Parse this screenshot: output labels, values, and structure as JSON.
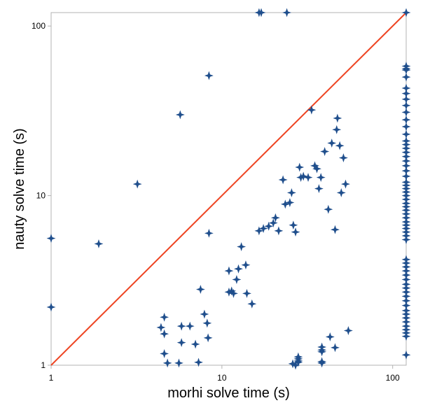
{
  "chart_data": {
    "type": "scatter",
    "title": "",
    "xlabel": "morhi solve time (s)",
    "ylabel": "nauty solve time (s)",
    "x_scale": "log",
    "y_scale": "log",
    "xlim": [
      1,
      120
    ],
    "ylim": [
      1,
      120
    ],
    "x_ticks": [
      1,
      10,
      100
    ],
    "y_ticks": [
      1,
      10,
      100
    ],
    "x_tick_labels": [
      "1",
      "10",
      "100"
    ],
    "y_tick_labels": [
      "1",
      "10",
      "100"
    ],
    "grid": false,
    "colors": {
      "points": "#1f4e8c",
      "diagonal": "#ee4422",
      "frame": "#b3b3b3"
    },
    "reference_line": {
      "type": "y=x"
    },
    "series": [
      {
        "points": [
          [
            1.0,
            5.6
          ],
          [
            1.0,
            2.2
          ],
          [
            1.9,
            5.2
          ],
          [
            3.2,
            11.7
          ],
          [
            5.7,
            30.0
          ],
          [
            8.4,
            51.0
          ],
          [
            8.4,
            6.0
          ],
          [
            16.5,
            120
          ],
          [
            17.0,
            120
          ],
          [
            24.0,
            120
          ],
          [
            120,
            120
          ],
          [
            4.4,
            1.67
          ],
          [
            4.6,
            1.92
          ],
          [
            4.6,
            1.53
          ],
          [
            4.6,
            1.17
          ],
          [
            4.8,
            1.03
          ],
          [
            5.6,
            1.03
          ],
          [
            5.8,
            1.7
          ],
          [
            5.8,
            1.36
          ],
          [
            6.5,
            1.7
          ],
          [
            7.0,
            1.33
          ],
          [
            7.3,
            1.04
          ],
          [
            7.5,
            2.8
          ],
          [
            7.9,
            2.0
          ],
          [
            8.2,
            1.77
          ],
          [
            8.3,
            1.45
          ],
          [
            11.0,
            3.6
          ],
          [
            11.0,
            2.7
          ],
          [
            11.4,
            2.74
          ],
          [
            11.7,
            2.65
          ],
          [
            12.2,
            3.2
          ],
          [
            12.5,
            3.7
          ],
          [
            13.0,
            5.0
          ],
          [
            13.8,
            3.9
          ],
          [
            14.0,
            2.65
          ],
          [
            15.0,
            2.3
          ],
          [
            16.5,
            6.2
          ],
          [
            17.5,
            6.4
          ],
          [
            18.8,
            6.6
          ],
          [
            20.0,
            6.9
          ],
          [
            20.6,
            7.4
          ],
          [
            21.5,
            6.2
          ],
          [
            22.8,
            12.4
          ],
          [
            23.5,
            8.9
          ],
          [
            25.0,
            9.1
          ],
          [
            25.6,
            10.4
          ],
          [
            26.2,
            6.7
          ],
          [
            27.0,
            6.1
          ],
          [
            28.5,
            14.7
          ],
          [
            29.0,
            12.8
          ],
          [
            30.0,
            13.0
          ],
          [
            32.0,
            12.8
          ],
          [
            33.5,
            32.0
          ],
          [
            35.0,
            15.0
          ],
          [
            36.0,
            14.4
          ],
          [
            37.0,
            11.0
          ],
          [
            38.0,
            12.8
          ],
          [
            40.0,
            18.2
          ],
          [
            42.0,
            8.3
          ],
          [
            44.0,
            20.4
          ],
          [
            46.0,
            6.3
          ],
          [
            47.0,
            24.5
          ],
          [
            47.5,
            28.6
          ],
          [
            49.0,
            19.7
          ],
          [
            50.0,
            10.4
          ],
          [
            51.5,
            16.7
          ],
          [
            53.0,
            11.7
          ],
          [
            55.0,
            1.6
          ],
          [
            43.0,
            1.47
          ],
          [
            46.0,
            1.27
          ],
          [
            38.5,
            1.03
          ],
          [
            38.5,
            1.23
          ],
          [
            38.5,
            1.28
          ],
          [
            38.5,
            1.2
          ],
          [
            38.5,
            1.05
          ],
          [
            26.0,
            1.02
          ],
          [
            27.0,
            1.0
          ],
          [
            28.0,
            1.06
          ],
          [
            28.0,
            1.09
          ],
          [
            28.0,
            1.12
          ],
          [
            28.0,
            1.04
          ],
          [
            120,
            58.0
          ],
          [
            120,
            56.0
          ],
          [
            120,
            55.0
          ],
          [
            120,
            50.0
          ],
          [
            120,
            43.0
          ],
          [
            120,
            40.0
          ],
          [
            120,
            37.0
          ],
          [
            120,
            34.0
          ],
          [
            120,
            31.0
          ],
          [
            120,
            28.0
          ],
          [
            120,
            25.5
          ],
          [
            120,
            23.0
          ],
          [
            120,
            21.0
          ],
          [
            120,
            20.0
          ],
          [
            120,
            19.0
          ],
          [
            120,
            18.0
          ],
          [
            120,
            17.0
          ],
          [
            120,
            16.0
          ],
          [
            120,
            15.0
          ],
          [
            120,
            14.0
          ],
          [
            120,
            13.0
          ],
          [
            120,
            12.0
          ],
          [
            120,
            11.5
          ],
          [
            120,
            11.0
          ],
          [
            120,
            10.5
          ],
          [
            120,
            10.0
          ],
          [
            120,
            9.5
          ],
          [
            120,
            9.0
          ],
          [
            120,
            8.6
          ],
          [
            120,
            8.2
          ],
          [
            120,
            7.8
          ],
          [
            120,
            7.4
          ],
          [
            120,
            7.0
          ],
          [
            120,
            6.7
          ],
          [
            120,
            6.4
          ],
          [
            120,
            6.1
          ],
          [
            120,
            5.8
          ],
          [
            120,
            5.5
          ],
          [
            120,
            4.2
          ],
          [
            120,
            4.0
          ],
          [
            120,
            3.8
          ],
          [
            120,
            3.6
          ],
          [
            120,
            3.4
          ],
          [
            120,
            3.2
          ],
          [
            120,
            3.0
          ],
          [
            120,
            2.85
          ],
          [
            120,
            2.7
          ],
          [
            120,
            2.55
          ],
          [
            120,
            2.4
          ],
          [
            120,
            2.25
          ],
          [
            120,
            2.1
          ],
          [
            120,
            2.0
          ],
          [
            120,
            1.9
          ],
          [
            120,
            1.8
          ],
          [
            120,
            1.7
          ],
          [
            120,
            1.62
          ],
          [
            120,
            1.55
          ],
          [
            120,
            1.48
          ],
          [
            120,
            1.15
          ]
        ]
      }
    ]
  }
}
